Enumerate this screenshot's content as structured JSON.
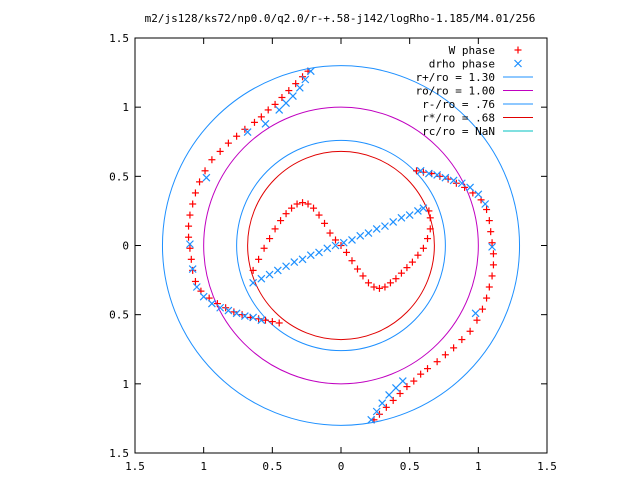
{
  "chart_data": {
    "type": "scatter",
    "title": "m2/js128/ks72/np0.0/q2.0/r-+.58-j142/logRho-1.185/M4.01/256",
    "xlabel": "",
    "ylabel": "",
    "xlim": [
      -1.5,
      1.5
    ],
    "ylim": [
      -1.5,
      1.5
    ],
    "x_ticks": [
      "1.5",
      "1",
      "0.5",
      "0",
      "0.5",
      "1",
      "1.5"
    ],
    "y_ticks": [
      "1.5",
      "1",
      "0.5",
      "0",
      "0.5",
      "1",
      "1.5"
    ],
    "grid": false,
    "legend_position": "top-right",
    "series": [
      {
        "name": "W phase",
        "marker": "plus",
        "color": "#ff0000",
        "points": [
          [
            -0.64,
            -0.18
          ],
          [
            -0.6,
            -0.1
          ],
          [
            -0.56,
            -0.02
          ],
          [
            -0.52,
            0.05
          ],
          [
            -0.48,
            0.12
          ],
          [
            -0.44,
            0.18
          ],
          [
            -0.4,
            0.23
          ],
          [
            -0.36,
            0.27
          ],
          [
            -0.32,
            0.3
          ],
          [
            -0.28,
            0.31
          ],
          [
            -0.24,
            0.3
          ],
          [
            -0.2,
            0.27
          ],
          [
            -0.16,
            0.22
          ],
          [
            -0.12,
            0.16
          ],
          [
            -0.08,
            0.09
          ],
          [
            -0.04,
            0.04
          ],
          [
            0.0,
            0.0
          ],
          [
            0.04,
            -0.05
          ],
          [
            0.08,
            -0.11
          ],
          [
            0.12,
            -0.17
          ],
          [
            0.16,
            -0.22
          ],
          [
            0.2,
            -0.27
          ],
          [
            0.24,
            -0.3
          ],
          [
            0.28,
            -0.31
          ],
          [
            0.32,
            -0.3
          ],
          [
            0.36,
            -0.27
          ],
          [
            0.4,
            -0.24
          ],
          [
            0.44,
            -0.2
          ],
          [
            0.48,
            -0.16
          ],
          [
            0.52,
            -0.12
          ],
          [
            0.56,
            -0.07
          ],
          [
            0.6,
            -0.02
          ],
          [
            0.63,
            0.05
          ],
          [
            0.65,
            0.12
          ],
          [
            0.65,
            0.2
          ],
          [
            0.64,
            0.25
          ],
          [
            -0.24,
            1.26
          ],
          [
            -0.28,
            1.22
          ],
          [
            -0.33,
            1.17
          ],
          [
            -0.38,
            1.12
          ],
          [
            -0.43,
            1.07
          ],
          [
            -0.48,
            1.02
          ],
          [
            -0.53,
            0.98
          ],
          [
            -0.58,
            0.93
          ],
          [
            -0.63,
            0.89
          ],
          [
            -0.7,
            0.84
          ],
          [
            -0.76,
            0.79
          ],
          [
            -0.82,
            0.74
          ],
          [
            -0.88,
            0.68
          ],
          [
            -0.94,
            0.62
          ],
          [
            -0.99,
            0.54
          ],
          [
            -1.03,
            0.46
          ],
          [
            -1.06,
            0.38
          ],
          [
            -1.08,
            0.3
          ],
          [
            -1.1,
            0.22
          ],
          [
            -1.11,
            0.14
          ],
          [
            -1.11,
            0.06
          ],
          [
            -1.1,
            -0.02
          ],
          [
            -1.09,
            -0.1
          ],
          [
            -1.08,
            -0.18
          ],
          [
            -1.06,
            -0.26
          ],
          [
            -1.02,
            -0.33
          ],
          [
            -0.96,
            -0.38
          ],
          [
            -0.9,
            -0.42
          ],
          [
            -0.84,
            -0.45
          ],
          [
            -0.78,
            -0.48
          ],
          [
            -0.72,
            -0.5
          ],
          [
            -0.66,
            -0.52
          ],
          [
            -0.6,
            -0.53
          ],
          [
            -0.55,
            -0.54
          ],
          [
            -0.5,
            -0.55
          ],
          [
            -0.45,
            -0.56
          ],
          [
            0.24,
            -1.26
          ],
          [
            0.28,
            -1.22
          ],
          [
            0.33,
            -1.17
          ],
          [
            0.38,
            -1.12
          ],
          [
            0.43,
            -1.07
          ],
          [
            0.48,
            -1.02
          ],
          [
            0.53,
            -0.98
          ],
          [
            0.58,
            -0.93
          ],
          [
            0.63,
            -0.89
          ],
          [
            0.7,
            -0.84
          ],
          [
            0.76,
            -0.79
          ],
          [
            0.82,
            -0.74
          ],
          [
            0.88,
            -0.68
          ],
          [
            0.94,
            -0.62
          ],
          [
            0.99,
            -0.54
          ],
          [
            1.03,
            -0.46
          ],
          [
            1.06,
            -0.38
          ],
          [
            1.08,
            -0.3
          ],
          [
            1.1,
            -0.22
          ],
          [
            1.11,
            -0.14
          ],
          [
            1.11,
            -0.06
          ],
          [
            1.1,
            0.02
          ],
          [
            1.09,
            0.1
          ],
          [
            1.08,
            0.18
          ],
          [
            1.06,
            0.26
          ],
          [
            1.02,
            0.33
          ],
          [
            0.96,
            0.38
          ],
          [
            0.9,
            0.42
          ],
          [
            0.84,
            0.45
          ],
          [
            0.78,
            0.48
          ],
          [
            0.72,
            0.5
          ],
          [
            0.66,
            0.52
          ],
          [
            0.6,
            0.53
          ],
          [
            0.55,
            0.54
          ]
        ]
      },
      {
        "name": "drho phase",
        "marker": "cross",
        "color": "#1e90ff",
        "points": [
          [
            -0.64,
            -0.27
          ],
          [
            -0.58,
            -0.24
          ],
          [
            -0.52,
            -0.21
          ],
          [
            -0.46,
            -0.18
          ],
          [
            -0.4,
            -0.15
          ],
          [
            -0.34,
            -0.12
          ],
          [
            -0.28,
            -0.1
          ],
          [
            -0.22,
            -0.07
          ],
          [
            -0.16,
            -0.05
          ],
          [
            -0.1,
            -0.02
          ],
          [
            -0.04,
            0.0
          ],
          [
            0.02,
            0.02
          ],
          [
            0.08,
            0.04
          ],
          [
            0.14,
            0.07
          ],
          [
            0.2,
            0.09
          ],
          [
            0.26,
            0.12
          ],
          [
            0.32,
            0.14
          ],
          [
            0.38,
            0.17
          ],
          [
            0.44,
            0.2
          ],
          [
            0.5,
            0.22
          ],
          [
            0.56,
            0.25
          ],
          [
            0.6,
            0.27
          ],
          [
            -0.22,
            1.26
          ],
          [
            -0.26,
            1.2
          ],
          [
            -0.3,
            1.14
          ],
          [
            -0.35,
            1.08
          ],
          [
            -0.4,
            1.03
          ],
          [
            -0.45,
            0.98
          ],
          [
            -0.55,
            0.88
          ],
          [
            -0.68,
            0.82
          ],
          [
            -0.98,
            0.49
          ],
          [
            -1.1,
            0.01
          ],
          [
            -1.08,
            -0.17
          ],
          [
            -1.05,
            -0.3
          ],
          [
            -1.0,
            -0.37
          ],
          [
            -0.94,
            -0.42
          ],
          [
            -0.88,
            -0.45
          ],
          [
            -0.82,
            -0.47
          ],
          [
            -0.76,
            -0.49
          ],
          [
            -0.7,
            -0.51
          ],
          [
            -0.64,
            -0.52
          ],
          [
            -0.58,
            -0.54
          ],
          [
            0.22,
            -1.26
          ],
          [
            0.26,
            -1.2
          ],
          [
            0.3,
            -1.14
          ],
          [
            0.35,
            -1.08
          ],
          [
            0.4,
            -1.03
          ],
          [
            0.45,
            -0.98
          ],
          [
            0.98,
            -0.49
          ],
          [
            1.1,
            -0.01
          ],
          [
            1.05,
            0.3
          ],
          [
            1.0,
            0.37
          ],
          [
            0.94,
            0.42
          ],
          [
            0.88,
            0.45
          ],
          [
            0.82,
            0.47
          ],
          [
            0.76,
            0.49
          ],
          [
            0.7,
            0.51
          ],
          [
            0.64,
            0.52
          ],
          [
            0.58,
            0.54
          ]
        ]
      },
      {
        "name": "r+/ro = 1.30",
        "type": "circle",
        "radius": 1.3,
        "color": "#1e90ff"
      },
      {
        "name": "ro/ro = 1.00",
        "type": "circle",
        "radius": 1.0,
        "color": "#c000c0"
      },
      {
        "name": "r-/ro = .76",
        "type": "circle",
        "radius": 0.76,
        "color": "#1e90ff"
      },
      {
        "name": "r*/ro = .68",
        "type": "circle",
        "radius": 0.68,
        "color": "#e00000"
      },
      {
        "name": "rc/ro = NaN",
        "type": "circle",
        "radius": null,
        "color": "#00c0c0"
      }
    ]
  }
}
